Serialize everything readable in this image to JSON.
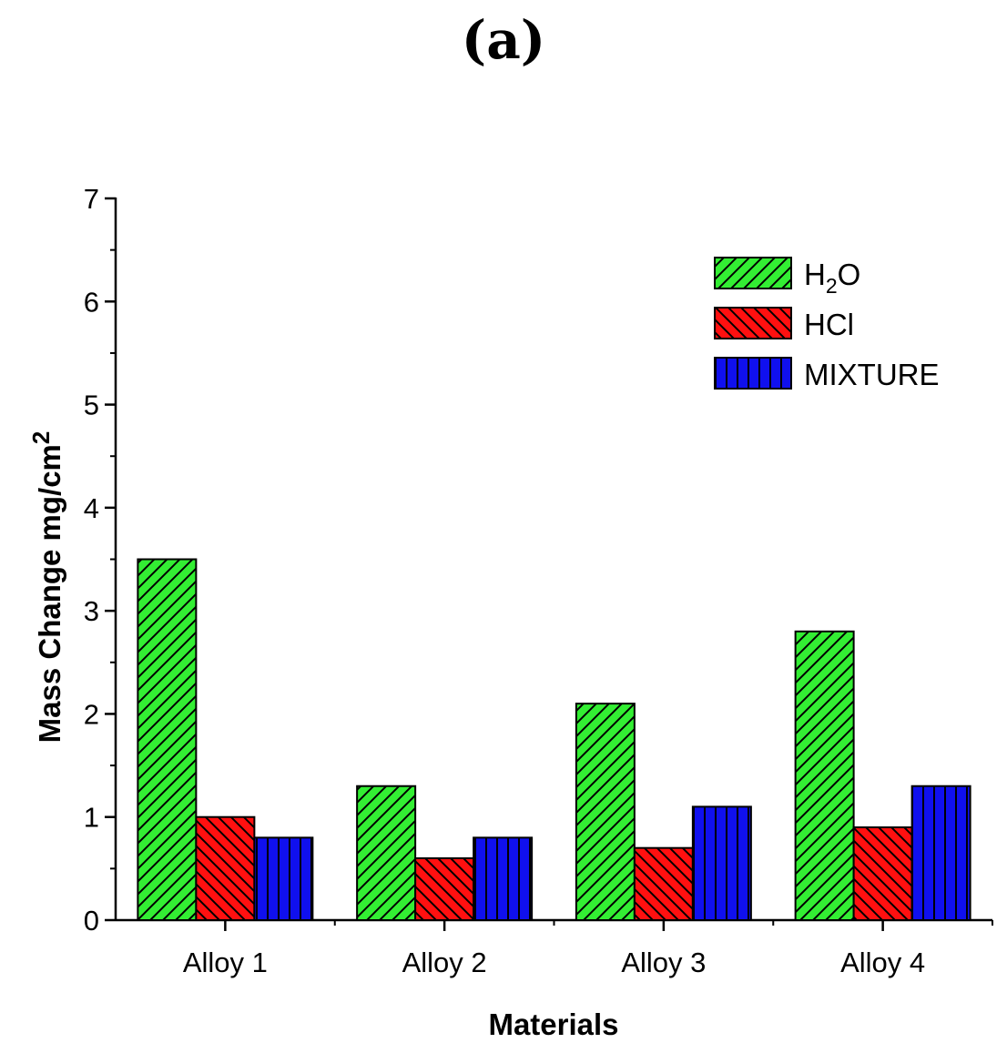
{
  "panel_label": "(a)",
  "chart_data": {
    "type": "bar",
    "title": "",
    "xlabel": "Materials",
    "ylabel": {
      "main": "Mass Change mg/cm",
      "superscript": "2"
    },
    "categories": [
      "Alloy 1",
      "Alloy 2",
      "Alloy 3",
      "Alloy 4"
    ],
    "ylim": [
      0,
      7
    ],
    "yticks": [
      0,
      1,
      2,
      3,
      4,
      5,
      6,
      7
    ],
    "grid": false,
    "legend_position": "top-right",
    "series": [
      {
        "name": "H2O",
        "label_parts": {
          "a": "H",
          "sub": "2",
          "b": "O"
        },
        "color": "#33ee33",
        "pattern": "diagonal-up",
        "values": [
          3.5,
          1.3,
          2.1,
          2.8
        ]
      },
      {
        "name": "HCl",
        "label_parts": {
          "a": "HCl",
          "sub": "",
          "b": ""
        },
        "color": "#ff1010",
        "pattern": "diagonal-down",
        "values": [
          1.0,
          0.6,
          0.7,
          0.9
        ]
      },
      {
        "name": "MIXTURE",
        "label_parts": {
          "a": "MIXTURE",
          "sub": "",
          "b": ""
        },
        "color": "#1010ee",
        "pattern": "vertical",
        "values": [
          0.8,
          0.8,
          1.1,
          1.3
        ]
      }
    ]
  }
}
